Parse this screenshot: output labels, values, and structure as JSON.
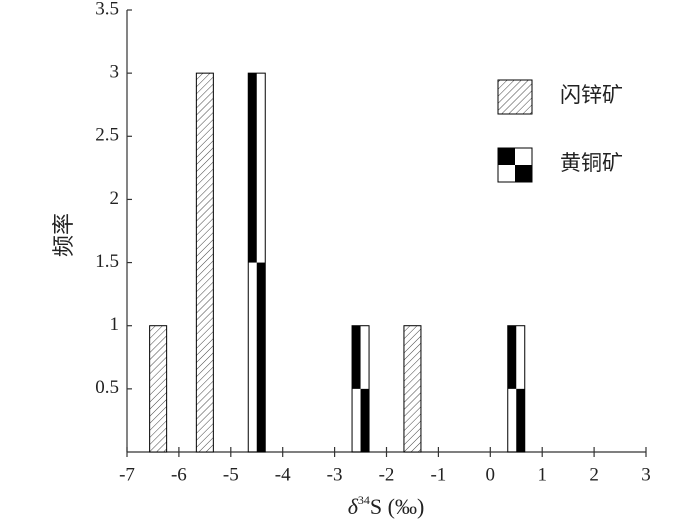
{
  "chart_data": {
    "type": "bar",
    "x_label": {
      "symbol": "δ",
      "superscript": "34",
      "text": "S (‰)"
    },
    "y_label": "频率",
    "xlim": [
      -7,
      3
    ],
    "xticks": [
      -7,
      -6,
      -5,
      -4,
      -3,
      -2,
      -1,
      0,
      1,
      2,
      3
    ],
    "ylim": [
      0,
      3.5
    ],
    "yticks": [
      0.5,
      1,
      1.5,
      2,
      2.5,
      3,
      3.5
    ],
    "grid": false,
    "legend": "upper right",
    "series": [
      {
        "name": "闪锌矿",
        "color": "#000000",
        "pattern": "hatch",
        "x": [
          -6.4,
          -5.5,
          -1.5
        ],
        "values": [
          1,
          3,
          1
        ]
      },
      {
        "name": "黄铜矿",
        "color": "#000000",
        "pattern": "checker",
        "x": [
          -4.5,
          -2.5,
          0.5
        ],
        "values": [
          3,
          1,
          1
        ]
      }
    ]
  }
}
